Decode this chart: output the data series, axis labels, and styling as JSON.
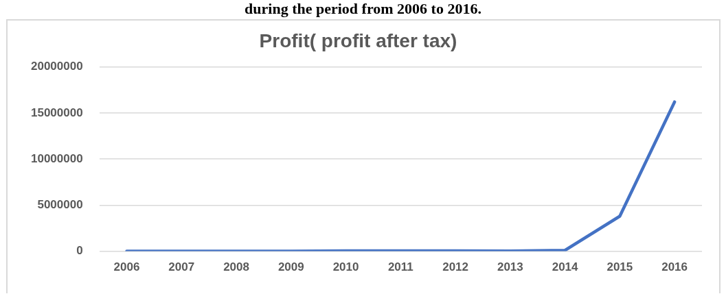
{
  "chart_data": {
    "type": "line",
    "title": "Profit( profit after tax)",
    "annotations": [
      "during the period from 2006 to 2016."
    ],
    "categories": [
      "2006",
      "2007",
      "2008",
      "2009",
      "2010",
      "2011",
      "2012",
      "2013",
      "2014",
      "2015",
      "2016"
    ],
    "series": [
      {
        "color": "#4472c4",
        "values": [
          0,
          0,
          0,
          0,
          50000,
          50000,
          50000,
          30000,
          100000,
          3800000,
          16200000
        ]
      }
    ],
    "ylim": [
      0,
      20000000
    ],
    "yticks": [
      0,
      5000000,
      10000000,
      15000000,
      20000000
    ],
    "grid": "y",
    "legend": false,
    "marker": "none",
    "line_style": "solid"
  }
}
